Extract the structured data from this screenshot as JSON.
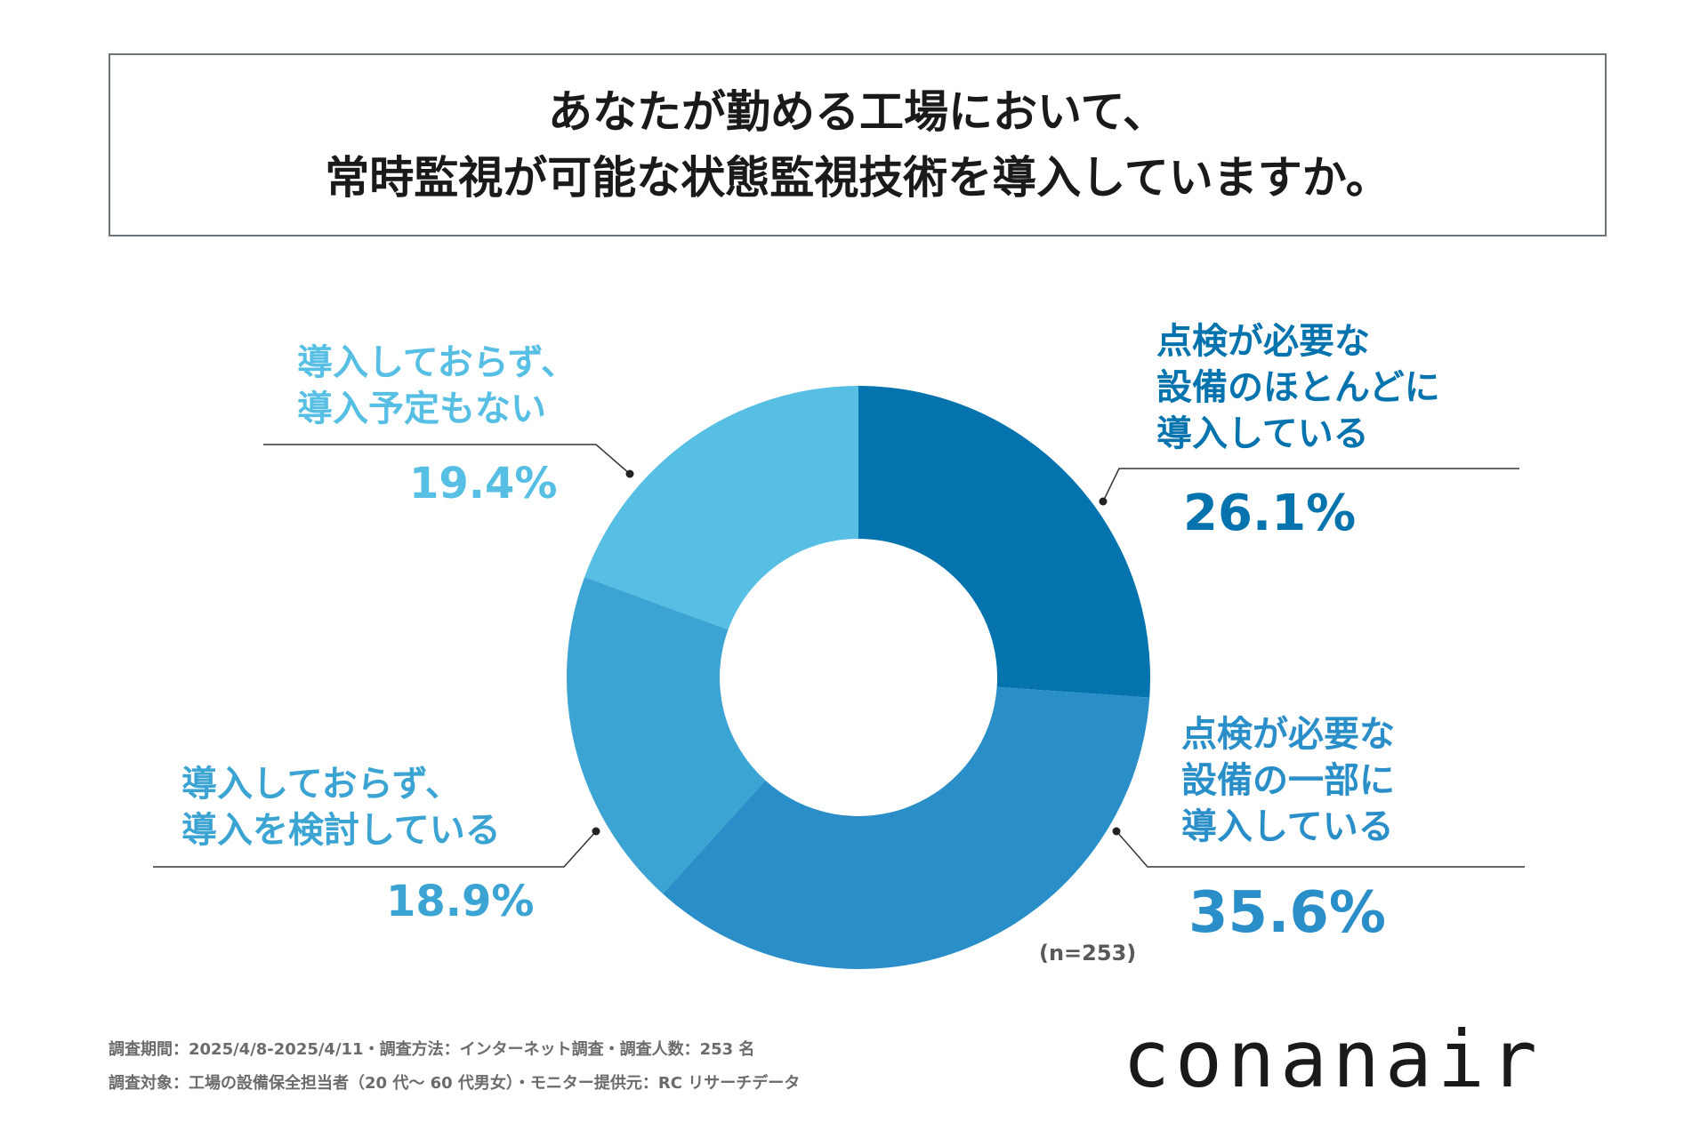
{
  "title": {
    "line1": "あなたが勤める工場において、",
    "line2": "常時監視が可能な状態監視技術を導入していますか。"
  },
  "chart_data": {
    "type": "pie",
    "title": "あなたが勤める工場において、常時監視が可能な状態監視技術を導入していますか。",
    "unit": "%",
    "n": 253,
    "slices": [
      {
        "label": "点検が必要な設備のほとんどに導入している",
        "value": 26.1,
        "color": "#0573ad"
      },
      {
        "label": "点検が必要な設備の一部に導入している",
        "value": 35.6,
        "color": "#2a8fc8"
      },
      {
        "label": "導入しておらず、導入を検討している",
        "value": 18.9,
        "color": "#3ba4d3"
      },
      {
        "label": "導入しておらず、導入予定もない",
        "value": 19.4,
        "color": "#56bfe3"
      }
    ]
  },
  "labels": {
    "s1": {
      "lines": [
        "点検が必要な",
        "設備のほとんどに",
        "導入している"
      ],
      "pct": "26.1%"
    },
    "s2": {
      "lines": [
        "点検が必要な",
        "設備の一部に",
        "導入している"
      ],
      "pct": "35.6%"
    },
    "s3": {
      "lines": [
        "導入しておらず、",
        "導入を検討している"
      ],
      "pct": "18.9%"
    },
    "s4": {
      "lines": [
        "導入しておらず、",
        "導入予定もない"
      ],
      "pct": "19.4%"
    }
  },
  "sample_size_label": "(n=253)",
  "footnotes": {
    "line1": "調査期間：2025/4/8-2025/4/11・調査方法：インターネット調査・調査人数：253 名",
    "line2": "調査対象：工場の設備保全担当者（20 代～ 60 代男女）・モニター提供元：RC リサーチデータ"
  },
  "logo": "conanair"
}
